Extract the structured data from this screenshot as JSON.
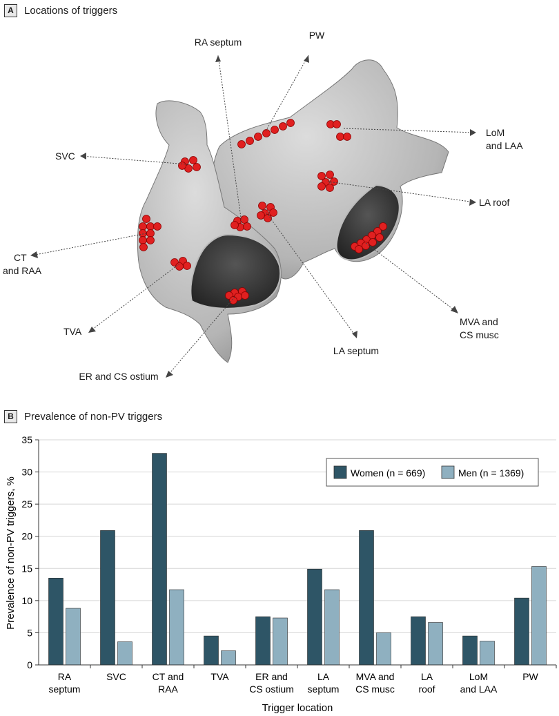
{
  "panel_a": {
    "letter": "A",
    "title": "Locations of triggers",
    "labels": {
      "ra_septum": "RA septum",
      "pw": "PW",
      "lom_laa_1": "LoM",
      "lom_laa_2": "and LAA",
      "svc": "SVC",
      "la_roof": "LA roof",
      "ct_raa_1": "CT",
      "ct_raa_2": "and RAA",
      "tva": "TVA",
      "mva_1": "MVA and",
      "mva_2": "CS musc",
      "la_septum": "LA septum",
      "er_cs": "ER and CS ostium"
    }
  },
  "panel_b": {
    "letter": "B",
    "title": "Prevalence of non-PV triggers"
  },
  "colors": {
    "women": "#2e5566",
    "men": "#8fb0c0",
    "trigger": "#e02020",
    "grid": "#d6d6d6"
  },
  "chart_data": {
    "type": "bar",
    "title": "Prevalence of non-PV triggers",
    "xlabel": "Trigger location",
    "ylabel": "Prevalence of non-PV triggers, %",
    "ylim": [
      0,
      35
    ],
    "yticks": [
      0,
      5,
      10,
      15,
      20,
      25,
      30,
      35
    ],
    "grid": true,
    "legend_position": "top-right",
    "categories": [
      [
        "RA",
        "septum"
      ],
      [
        "SVC"
      ],
      [
        "CT and",
        "RAA"
      ],
      [
        "TVA"
      ],
      [
        "ER and",
        "CS ostium"
      ],
      [
        "LA",
        "septum"
      ],
      [
        "MVA and",
        "CS musc"
      ],
      [
        "LA",
        "roof"
      ],
      [
        "LoM",
        "and LAA"
      ],
      [
        "PW"
      ]
    ],
    "series": [
      {
        "name": "Women (n = 669)",
        "values": [
          13.5,
          20.9,
          32.9,
          4.5,
          7.5,
          14.9,
          20.9,
          7.5,
          4.5,
          10.4
        ]
      },
      {
        "name": "Men (n = 1369)",
        "values": [
          8.8,
          3.6,
          11.7,
          2.2,
          7.3,
          11.7,
          5.0,
          6.6,
          3.7,
          15.3
        ]
      }
    ]
  }
}
